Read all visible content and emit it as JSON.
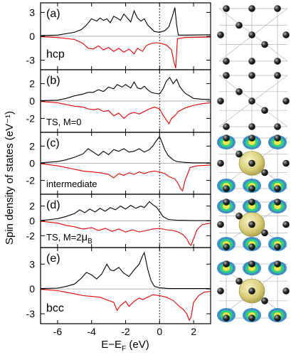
{
  "chart_data": {
    "type": "line",
    "ylabel": "Spin density of states (eV⁻¹)",
    "xlabel": "E−E",
    "xlabel_sub": "F",
    "xlabel_unit": " (eV)",
    "xlim": [
      -7,
      3
    ],
    "xticks": [
      "-6",
      "-4",
      "-2",
      "0",
      "2"
    ],
    "fermi_level": 0,
    "colors": {
      "spin_up": "#000000",
      "spin_down": "#e00000",
      "zero_line": "#999999",
      "fermi_line": "#000000"
    },
    "panels": [
      {
        "tag": "(a)",
        "label": "hcp",
        "ylim": [
          -4.2,
          4.2
        ],
        "yticks": [
          3,
          0,
          -3
        ],
        "ytick_labels": [
          "3",
          "0",
          "-3"
        ],
        "up": [
          [
            -7,
            0.08
          ],
          [
            -6,
            0.15
          ],
          [
            -5,
            0.5
          ],
          [
            -4.6,
            0.85
          ],
          [
            -4.3,
            1.4
          ],
          [
            -4.0,
            2.2
          ],
          [
            -3.7,
            1.9
          ],
          [
            -3.5,
            2.3
          ],
          [
            -3.3,
            2.0
          ],
          [
            -3.1,
            2.2
          ],
          [
            -2.9,
            1.7
          ],
          [
            -2.7,
            2.5
          ],
          [
            -2.5,
            2.3
          ],
          [
            -2.3,
            2.0
          ],
          [
            -2.1,
            2.8
          ],
          [
            -1.9,
            2.3
          ],
          [
            -1.7,
            1.8
          ],
          [
            -1.5,
            3.2
          ],
          [
            -1.3,
            2.3
          ],
          [
            -1.1,
            1.9
          ],
          [
            -0.9,
            2.2
          ],
          [
            -0.7,
            1.4
          ],
          [
            -0.5,
            1.0
          ],
          [
            -0.3,
            0.6
          ],
          [
            0.0,
            0.5
          ],
          [
            0.3,
            0.7
          ],
          [
            0.55,
            1.2
          ],
          [
            0.75,
            2.5
          ],
          [
            0.9,
            3.6
          ],
          [
            1.0,
            1.5
          ],
          [
            1.1,
            0.15
          ],
          [
            1.5,
            0.15
          ],
          [
            3,
            0.2
          ]
        ],
        "down": [
          [
            -7,
            -0.05
          ],
          [
            -6,
            -0.15
          ],
          [
            -5,
            -0.4
          ],
          [
            -4.5,
            -0.9
          ],
          [
            -4.2,
            -1.5
          ],
          [
            -3.9,
            -1.6
          ],
          [
            -3.6,
            -1.2
          ],
          [
            -3.3,
            -1.7
          ],
          [
            -3.0,
            -1.4
          ],
          [
            -2.7,
            -1.9
          ],
          [
            -2.4,
            -1.5
          ],
          [
            -2.1,
            -2.0
          ],
          [
            -1.8,
            -1.6
          ],
          [
            -1.5,
            -2.2
          ],
          [
            -1.3,
            -1.5
          ],
          [
            -1.0,
            -1.9
          ],
          [
            -0.8,
            -1.2
          ],
          [
            -0.5,
            -0.9
          ],
          [
            -0.2,
            -0.8
          ],
          [
            0.1,
            -0.9
          ],
          [
            0.4,
            -1.1
          ],
          [
            0.7,
            -1.7
          ],
          [
            0.85,
            -3.3
          ],
          [
            0.95,
            -4.0
          ],
          [
            1.05,
            -0.3
          ],
          [
            1.5,
            -0.15
          ],
          [
            3,
            -0.1
          ]
        ]
      },
      {
        "tag": "(b)",
        "label": "TS, M=0",
        "ylim": [
          -3.6,
          3.6
        ],
        "yticks": [
          2,
          0,
          -2
        ],
        "ytick_labels": [
          "2",
          "0",
          "-2"
        ],
        "up": [
          [
            -7,
            0.05
          ],
          [
            -6,
            0.1
          ],
          [
            -5.5,
            0.3
          ],
          [
            -5,
            0.6
          ],
          [
            -4.5,
            0.8
          ],
          [
            -4.2,
            1.0
          ],
          [
            -3.9,
            1.0
          ],
          [
            -3.6,
            1.3
          ],
          [
            -3.3,
            1.1
          ],
          [
            -3.0,
            1.6
          ],
          [
            -2.7,
            1.4
          ],
          [
            -2.5,
            1.9
          ],
          [
            -2.2,
            1.6
          ],
          [
            -2.0,
            1.9
          ],
          [
            -1.7,
            1.5
          ],
          [
            -1.5,
            2.2
          ],
          [
            -1.3,
            1.5
          ],
          [
            -1.1,
            1.4
          ],
          [
            -0.9,
            1.7
          ],
          [
            -0.7,
            1.3
          ],
          [
            -0.5,
            1.0
          ],
          [
            -0.3,
            0.9
          ],
          [
            0.0,
            0.8
          ],
          [
            0.2,
            1.4
          ],
          [
            0.4,
            2.3
          ],
          [
            0.6,
            2.7
          ],
          [
            0.8,
            2.0
          ],
          [
            1.0,
            2.5
          ],
          [
            1.2,
            1.6
          ],
          [
            1.5,
            0.9
          ],
          [
            2.0,
            0.3
          ],
          [
            2.5,
            0.2
          ],
          [
            3,
            0.2
          ]
        ],
        "down": [
          [
            -7,
            -0.05
          ],
          [
            -6,
            -0.2
          ],
          [
            -5.5,
            -0.4
          ],
          [
            -5,
            -0.6
          ],
          [
            -4.5,
            -0.7
          ],
          [
            -4.2,
            -0.9
          ],
          [
            -3.9,
            -1.0
          ],
          [
            -3.6,
            -0.9
          ],
          [
            -3.3,
            -1.2
          ],
          [
            -3.0,
            -1.1
          ],
          [
            -2.7,
            -1.7
          ],
          [
            -2.4,
            -1.4
          ],
          [
            -2.1,
            -2.0
          ],
          [
            -1.8,
            -1.5
          ],
          [
            -1.5,
            -1.3
          ],
          [
            -1.2,
            -1.5
          ],
          [
            -0.9,
            -1.2
          ],
          [
            -0.6,
            -0.9
          ],
          [
            -0.3,
            -0.7
          ],
          [
            0.0,
            -0.9
          ],
          [
            0.2,
            -1.6
          ],
          [
            0.4,
            -2.2
          ],
          [
            0.55,
            -2.6
          ],
          [
            0.7,
            -2.0
          ],
          [
            0.9,
            -1.7
          ],
          [
            1.1,
            -1.2
          ],
          [
            1.5,
            -0.8
          ],
          [
            2.0,
            -0.5
          ],
          [
            2.5,
            -0.3
          ],
          [
            3,
            -0.2
          ]
        ]
      },
      {
        "tag": "(c)",
        "label": "intermediate",
        "ylim": [
          -3.6,
          3.6
        ],
        "yticks": [
          2,
          0,
          -2
        ],
        "ytick_labels": [
          "2",
          "0",
          "-2"
        ],
        "up": [
          [
            -7,
            0.05
          ],
          [
            -6,
            0.2
          ],
          [
            -5.5,
            0.4
          ],
          [
            -5,
            0.7
          ],
          [
            -4.5,
            1.1
          ],
          [
            -4.2,
            1.7
          ],
          [
            -3.9,
            1.3
          ],
          [
            -3.6,
            0.9
          ],
          [
            -3.3,
            1.4
          ],
          [
            -3.0,
            1.0
          ],
          [
            -2.7,
            1.6
          ],
          [
            -2.4,
            1.4
          ],
          [
            -2.1,
            1.7
          ],
          [
            -1.8,
            1.3
          ],
          [
            -1.5,
            1.4
          ],
          [
            -1.2,
            1.7
          ],
          [
            -0.9,
            1.3
          ],
          [
            -0.6,
            1.6
          ],
          [
            -0.4,
            2.0
          ],
          [
            -0.2,
            2.6
          ],
          [
            0.0,
            3.1
          ],
          [
            0.15,
            2.4
          ],
          [
            0.3,
            1.6
          ],
          [
            0.5,
            0.9
          ],
          [
            0.8,
            0.4
          ],
          [
            1.0,
            0.2
          ],
          [
            1.5,
            0.1
          ],
          [
            2.0,
            0.05
          ],
          [
            3,
            0.05
          ]
        ],
        "down": [
          [
            -7,
            -0.05
          ],
          [
            -6,
            -0.3
          ],
          [
            -5.5,
            -0.5
          ],
          [
            -5,
            -0.7
          ],
          [
            -4.5,
            -0.9
          ],
          [
            -4.0,
            -1.0
          ],
          [
            -3.5,
            -1.1
          ],
          [
            -3.0,
            -1.3
          ],
          [
            -2.7,
            -1.7
          ],
          [
            -2.4,
            -1.2
          ],
          [
            -2.1,
            -1.4
          ],
          [
            -1.8,
            -1.1
          ],
          [
            -1.5,
            -1.3
          ],
          [
            -1.2,
            -1.0
          ],
          [
            -0.9,
            -1.2
          ],
          [
            -0.6,
            -1.0
          ],
          [
            -0.3,
            -0.9
          ],
          [
            0.0,
            -1.0
          ],
          [
            0.3,
            -1.2
          ],
          [
            0.6,
            -1.6
          ],
          [
            0.9,
            -1.8
          ],
          [
            1.1,
            -2.4
          ],
          [
            1.25,
            -3.0
          ],
          [
            1.35,
            -3.2
          ],
          [
            1.5,
            -2.0
          ],
          [
            1.8,
            -0.5
          ],
          [
            2.2,
            -0.3
          ],
          [
            3,
            -0.2
          ]
        ]
      },
      {
        "tag": "(d)",
        "label": "TS, M=2",
        "label_mu": "μ",
        "label_sub": "B",
        "ylim": [
          -3.6,
          3.6
        ],
        "yticks": [
          2,
          0,
          -2
        ],
        "ytick_labels": [
          "2",
          "0",
          "-2"
        ],
        "up": [
          [
            -7,
            0.05
          ],
          [
            -6,
            0.3
          ],
          [
            -5.5,
            0.6
          ],
          [
            -5,
            1.0
          ],
          [
            -4.7,
            1.5
          ],
          [
            -4.4,
            1.1
          ],
          [
            -4.1,
            1.6
          ],
          [
            -3.8,
            1.2
          ],
          [
            -3.5,
            1.7
          ],
          [
            -3.2,
            1.3
          ],
          [
            -2.9,
            1.8
          ],
          [
            -2.6,
            1.5
          ],
          [
            -2.3,
            2.0
          ],
          [
            -2.0,
            1.6
          ],
          [
            -1.7,
            2.1
          ],
          [
            -1.4,
            1.7
          ],
          [
            -1.1,
            2.0
          ],
          [
            -0.9,
            1.8
          ],
          [
            -0.6,
            2.6
          ],
          [
            -0.4,
            2.2
          ],
          [
            -0.2,
            1.9
          ],
          [
            0.0,
            1.3
          ],
          [
            0.2,
            0.6
          ],
          [
            0.5,
            0.2
          ],
          [
            1.0,
            0.1
          ],
          [
            2.0,
            0.05
          ],
          [
            3,
            0.05
          ]
        ],
        "down": [
          [
            -7,
            -0.05
          ],
          [
            -6,
            -0.3
          ],
          [
            -5.5,
            -0.6
          ],
          [
            -5,
            -0.8
          ],
          [
            -4.5,
            -1.1
          ],
          [
            -4.0,
            -0.9
          ],
          [
            -3.6,
            -1.3
          ],
          [
            -3.2,
            -1.0
          ],
          [
            -2.8,
            -1.4
          ],
          [
            -2.4,
            -1.1
          ],
          [
            -2.0,
            -1.5
          ],
          [
            -1.6,
            -1.2
          ],
          [
            -1.2,
            -1.5
          ],
          [
            -0.8,
            -1.3
          ],
          [
            -0.4,
            -1.1
          ],
          [
            0.0,
            -1.0
          ],
          [
            0.4,
            -1.2
          ],
          [
            0.8,
            -1.3
          ],
          [
            1.1,
            -1.5
          ],
          [
            1.4,
            -1.9
          ],
          [
            1.6,
            -2.4
          ],
          [
            1.75,
            -3.1
          ],
          [
            1.85,
            -3.3
          ],
          [
            2.0,
            -2.4
          ],
          [
            2.2,
            -1.2
          ],
          [
            2.5,
            -0.5
          ],
          [
            3,
            -0.3
          ]
        ]
      },
      {
        "tag": "(e)",
        "label": "bcc",
        "ylim": [
          -4.2,
          5.0
        ],
        "yticks": [
          3,
          0,
          -3
        ],
        "ytick_labels": [
          "3",
          "0",
          "-3"
        ],
        "up": [
          [
            -7,
            0.05
          ],
          [
            -6,
            0.1
          ],
          [
            -5.5,
            0.3
          ],
          [
            -5.0,
            0.6
          ],
          [
            -4.6,
            1.3
          ],
          [
            -4.3,
            2.0
          ],
          [
            -4.0,
            1.7
          ],
          [
            -3.7,
            1.2
          ],
          [
            -3.4,
            1.8
          ],
          [
            -3.1,
            3.0
          ],
          [
            -2.9,
            2.3
          ],
          [
            -2.7,
            2.2
          ],
          [
            -2.4,
            2.6
          ],
          [
            -2.1,
            1.9
          ],
          [
            -1.8,
            1.5
          ],
          [
            -1.5,
            2.3
          ],
          [
            -1.2,
            3.0
          ],
          [
            -1.0,
            4.0
          ],
          [
            -0.9,
            4.4
          ],
          [
            -0.7,
            2.4
          ],
          [
            -0.5,
            1.0
          ],
          [
            -0.3,
            0.3
          ],
          [
            0.0,
            0.15
          ],
          [
            0.5,
            0.05
          ],
          [
            1.0,
            0.05
          ],
          [
            2.0,
            0.05
          ],
          [
            3,
            0.05
          ]
        ],
        "down": [
          [
            -7,
            -0.05
          ],
          [
            -6,
            -0.2
          ],
          [
            -5.5,
            -0.4
          ],
          [
            -5.0,
            -0.6
          ],
          [
            -4.5,
            -0.8
          ],
          [
            -4.0,
            -0.9
          ],
          [
            -3.5,
            -1.0
          ],
          [
            -3.0,
            -1.4
          ],
          [
            -2.7,
            -1.6
          ],
          [
            -2.5,
            -2.6
          ],
          [
            -2.3,
            -2.0
          ],
          [
            -2.0,
            -1.5
          ],
          [
            -1.8,
            -2.1
          ],
          [
            -1.5,
            -1.5
          ],
          [
            -1.2,
            -1.1
          ],
          [
            -1.0,
            -1.3
          ],
          [
            -0.7,
            -1.0
          ],
          [
            -0.4,
            -0.7
          ],
          [
            0.0,
            -0.8
          ],
          [
            0.4,
            -1.0
          ],
          [
            0.8,
            -1.4
          ],
          [
            1.1,
            -2.0
          ],
          [
            1.4,
            -2.5
          ],
          [
            1.6,
            -3.0
          ],
          [
            1.75,
            -3.8
          ],
          [
            1.85,
            -3.4
          ],
          [
            2.0,
            -1.6
          ],
          [
            2.3,
            -0.8
          ],
          [
            2.6,
            -0.4
          ],
          [
            3,
            -0.3
          ]
        ]
      }
    ]
  },
  "structures": [
    {
      "name": "hcp",
      "isosurface": false
    },
    {
      "name": "ts-m0",
      "isosurface": false
    },
    {
      "name": "intermediate",
      "isosurface": true
    },
    {
      "name": "ts-m2",
      "isosurface": true
    },
    {
      "name": "bcc",
      "isosurface": true
    }
  ]
}
